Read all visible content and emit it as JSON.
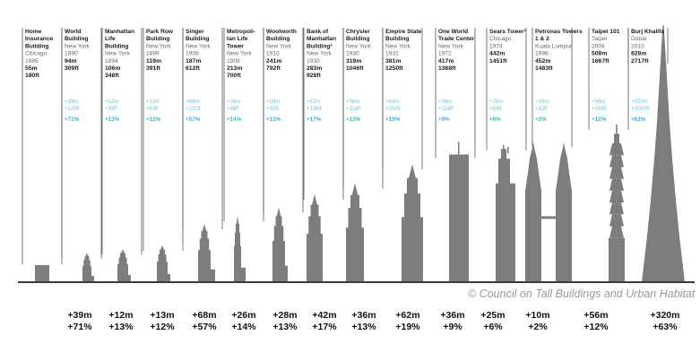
{
  "chart_data": {
    "type": "bar",
    "title": "",
    "xlabel": "",
    "ylabel": "",
    "categories": [
      "Home Insurance Building",
      "World Building",
      "Manhattan Life Building",
      "Park Row Building",
      "Singer Building",
      "Metropolitan Life Tower",
      "Woolworth Building",
      "Bank of Manhattan Building²",
      "Chrysler Building",
      "Empire State Building",
      "One World Trade Center",
      "Sears Tower¹",
      "Petronas Towers 1 & 2",
      "Taipei 101",
      "Burj Khalifa"
    ],
    "buildings": [
      {
        "name": [
          "Home",
          "Insurance",
          "Building"
        ],
        "city": "Chicago",
        "year": "1885",
        "height_m": 55,
        "m_label": "55m",
        "ft_label": "180ft",
        "inc_m": null,
        "inc_ft": null,
        "inc_pct": null
      },
      {
        "name": [
          "World",
          "Building"
        ],
        "city": "New York",
        "year": "1890",
        "height_m": 94,
        "m_label": "94m",
        "ft_label": "309ft",
        "inc_m": "+39m",
        "inc_ft": "+129ft",
        "inc_pct": "+71%"
      },
      {
        "name": [
          "Manhattan",
          "Life",
          "Building"
        ],
        "city": "New York",
        "year": "1894",
        "height_m": 106,
        "m_label": "106m",
        "ft_label": "348ft",
        "inc_m": "+12m",
        "inc_ft": "+39ft",
        "inc_pct": "+13%"
      },
      {
        "name": [
          "Park Row",
          "Building"
        ],
        "city": "New York",
        "year": "1899",
        "height_m": 119,
        "m_label": "119m",
        "ft_label": "391ft",
        "inc_m": "+13m",
        "inc_ft": "+43ft",
        "inc_pct": "+12%"
      },
      {
        "name": [
          "Singer",
          "Building"
        ],
        "city": "New York",
        "year": "1908",
        "height_m": 187,
        "m_label": "187m",
        "ft_label": "612ft",
        "inc_m": "+68m",
        "inc_ft": "+221ft",
        "inc_pct": "+57%"
      },
      {
        "name": [
          "Metropoli-",
          "tan Life",
          "Tower"
        ],
        "city": "New York",
        "year": "1909",
        "height_m": 213,
        "m_label": "213m",
        "ft_label": "700ft",
        "inc_m": "+26m",
        "inc_ft": "+88ft",
        "inc_pct": "+14%"
      },
      {
        "name": [
          "Woolworth",
          "Building"
        ],
        "city": "New York",
        "year": "1913",
        "height_m": 241,
        "m_label": "241m",
        "ft_label": "792ft",
        "inc_m": "+28m",
        "inc_ft": "+92ft",
        "inc_pct": "+13%"
      },
      {
        "name": [
          "Bank of",
          "Manhattan",
          "Building²"
        ],
        "city": "New York",
        "year": "1930",
        "height_m": 283,
        "m_label": "283m",
        "ft_label": "928ft",
        "inc_m": "+42m",
        "inc_ft": "+136ft",
        "inc_pct": "+17%"
      },
      {
        "name": [
          "Chrysler",
          "Building"
        ],
        "city": "New York",
        "year": "1930",
        "height_m": 319,
        "m_label": "319m",
        "ft_label": "1046ft",
        "inc_m": "+36m",
        "inc_ft": "+118ft",
        "inc_pct": "+13%"
      },
      {
        "name": [
          "Empire State",
          "Building"
        ],
        "city": "New York",
        "year": "1931",
        "height_m": 381,
        "m_label": "381m",
        "ft_label": "1250ft",
        "inc_m": "+62m",
        "inc_ft": "+204ft",
        "inc_pct": "+19%"
      },
      {
        "name": [
          "One World",
          "Trade Center"
        ],
        "city": "New York",
        "year": "1972",
        "height_m": 417,
        "m_label": "417m",
        "ft_label": "1368ft",
        "inc_m": "+36m",
        "inc_ft": "+118ft",
        "inc_pct": "+9%"
      },
      {
        "name": [
          "Sears Tower¹"
        ],
        "city": "Chicago",
        "year": "1974",
        "height_m": 442,
        "m_label": "442m",
        "ft_label": "1451ft",
        "inc_m": "+25m",
        "inc_ft": "+83ft",
        "inc_pct": "+6%"
      },
      {
        "name": [
          "Petronas Towers",
          "1 & 2"
        ],
        "city": "Kuala Lumpur",
        "year": "1998",
        "height_m": 452,
        "m_label": "452m",
        "ft_label": "1483ft",
        "inc_m": "+10m",
        "inc_ft": "+32ft",
        "inc_pct": "+2%"
      },
      {
        "name": [
          "Taipei 101"
        ],
        "city": "Taipei",
        "year": "2004",
        "height_m": 508,
        "m_label": "508m",
        "ft_label": "1667ft",
        "inc_m": "+56m",
        "inc_ft": "+184ft",
        "inc_pct": "+12%"
      },
      {
        "name": [
          "Burj Khalifa"
        ],
        "city": "Dubai",
        "year": "2010",
        "height_m": 828,
        "m_label": "828m",
        "ft_label": "2717ft",
        "inc_m": "+320m",
        "inc_ft": "+1050ft",
        "inc_pct": "+63%"
      }
    ],
    "ylim": [
      0,
      828
    ],
    "grid": false,
    "legend": "none"
  },
  "credit": "© Council on Tall Buildings and Urban Habitat",
  "colors": {
    "building": "#7d7d7d",
    "label_line": "#555555",
    "increase": "#66c6dd",
    "increase_pct": "#2fb4d4",
    "baseline": "#3a3a3a"
  }
}
